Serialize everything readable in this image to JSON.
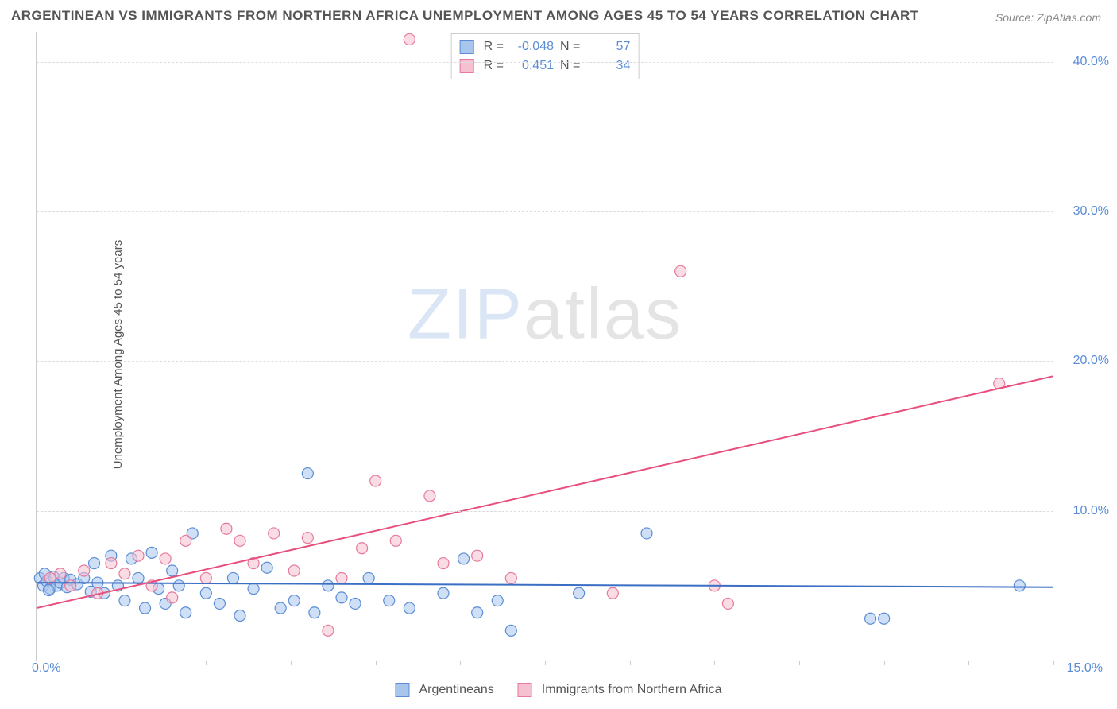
{
  "title": "ARGENTINEAN VS IMMIGRANTS FROM NORTHERN AFRICA UNEMPLOYMENT AMONG AGES 45 TO 54 YEARS CORRELATION CHART",
  "source": "Source: ZipAtlas.com",
  "yaxis_label": "Unemployment Among Ages 45 to 54 years",
  "watermark_bold": "ZIP",
  "watermark_thin": "atlas",
  "chart": {
    "type": "scatter",
    "xlim": [
      0,
      15
    ],
    "ylim": [
      0,
      42
    ],
    "x_ticks_major": [
      0,
      5,
      10,
      15
    ],
    "x_tick_labels": {
      "left": "0.0%",
      "right": "15.0%"
    },
    "y_gridlines": [
      10,
      20,
      30,
      40
    ],
    "y_tick_labels": [
      "10.0%",
      "20.0%",
      "30.0%",
      "40.0%"
    ],
    "background_color": "#ffffff",
    "grid_color": "#dddddd",
    "marker_radius": 7,
    "marker_opacity": 0.55,
    "series": [
      {
        "name": "Argentineans",
        "fill": "#a8c5ec",
        "stroke": "#5b8dd6",
        "R_label": "R =",
        "R": "-0.048",
        "N_label": "N =",
        "N": "57",
        "trend": {
          "y_at_x0": 5.2,
          "y_at_xmax": 4.9,
          "color": "#3b6fc4",
          "width": 2
        },
        "points": [
          [
            0.05,
            5.5
          ],
          [
            0.1,
            5.0
          ],
          [
            0.15,
            5.3
          ],
          [
            0.2,
            4.8
          ],
          [
            0.25,
            5.6
          ],
          [
            0.3,
            5.0
          ],
          [
            0.35,
            5.2
          ],
          [
            0.4,
            5.5
          ],
          [
            0.45,
            4.9
          ],
          [
            0.5,
            5.4
          ],
          [
            0.6,
            5.1
          ],
          [
            0.7,
            5.5
          ],
          [
            0.8,
            4.6
          ],
          [
            0.85,
            6.5
          ],
          [
            0.9,
            5.2
          ],
          [
            1.0,
            4.5
          ],
          [
            1.1,
            7.0
          ],
          [
            1.2,
            5.0
          ],
          [
            1.3,
            4.0
          ],
          [
            1.4,
            6.8
          ],
          [
            1.5,
            5.5
          ],
          [
            1.6,
            3.5
          ],
          [
            1.7,
            7.2
          ],
          [
            1.8,
            4.8
          ],
          [
            1.9,
            3.8
          ],
          [
            2.0,
            6.0
          ],
          [
            2.1,
            5.0
          ],
          [
            2.2,
            3.2
          ],
          [
            2.3,
            8.5
          ],
          [
            2.5,
            4.5
          ],
          [
            2.7,
            3.8
          ],
          [
            2.9,
            5.5
          ],
          [
            3.0,
            3.0
          ],
          [
            3.2,
            4.8
          ],
          [
            3.4,
            6.2
          ],
          [
            3.6,
            3.5
          ],
          [
            3.8,
            4.0
          ],
          [
            4.0,
            12.5
          ],
          [
            4.1,
            3.2
          ],
          [
            4.3,
            5.0
          ],
          [
            4.5,
            4.2
          ],
          [
            4.7,
            3.8
          ],
          [
            4.9,
            5.5
          ],
          [
            5.2,
            4.0
          ],
          [
            5.5,
            3.5
          ],
          [
            6.0,
            4.5
          ],
          [
            6.3,
            6.8
          ],
          [
            6.5,
            3.2
          ],
          [
            6.8,
            4.0
          ],
          [
            7.0,
            2.0
          ],
          [
            8.0,
            4.5
          ],
          [
            9.0,
            8.5
          ],
          [
            12.3,
            2.8
          ],
          [
            12.5,
            2.8
          ],
          [
            14.5,
            5.0
          ],
          [
            0.12,
            5.8
          ],
          [
            0.18,
            4.7
          ]
        ]
      },
      {
        "name": "Immigrants from Northern Africa",
        "fill": "#f5c0cf",
        "stroke": "#e67a9c",
        "R_label": "R =",
        "R": "0.451",
        "N_label": "N =",
        "N": "34",
        "trend": {
          "y_at_x0": 3.5,
          "y_at_xmax": 19.0,
          "color": "#e84f7d",
          "width": 2
        },
        "points": [
          [
            0.2,
            5.5
          ],
          [
            0.35,
            5.8
          ],
          [
            0.5,
            5.0
          ],
          [
            0.7,
            6.0
          ],
          [
            0.9,
            4.5
          ],
          [
            1.1,
            6.5
          ],
          [
            1.3,
            5.8
          ],
          [
            1.5,
            7.0
          ],
          [
            1.7,
            5.0
          ],
          [
            1.9,
            6.8
          ],
          [
            2.0,
            4.2
          ],
          [
            2.2,
            8.0
          ],
          [
            2.5,
            5.5
          ],
          [
            2.8,
            8.8
          ],
          [
            3.0,
            8.0
          ],
          [
            3.2,
            6.5
          ],
          [
            3.5,
            8.5
          ],
          [
            3.8,
            6.0
          ],
          [
            4.0,
            8.2
          ],
          [
            4.3,
            2.0
          ],
          [
            4.5,
            5.5
          ],
          [
            5.0,
            12.0
          ],
          [
            5.3,
            8.0
          ],
          [
            5.5,
            41.5
          ],
          [
            5.8,
            11.0
          ],
          [
            6.0,
            6.5
          ],
          [
            6.5,
            7.0
          ],
          [
            7.0,
            5.5
          ],
          [
            8.5,
            4.5
          ],
          [
            9.5,
            26.0
          ],
          [
            10.0,
            5.0
          ],
          [
            10.2,
            3.8
          ],
          [
            14.2,
            18.5
          ],
          [
            4.8,
            7.5
          ]
        ]
      }
    ]
  },
  "legend": {
    "series1_label": "Argentineans",
    "series2_label": "Immigrants from Northern Africa"
  }
}
